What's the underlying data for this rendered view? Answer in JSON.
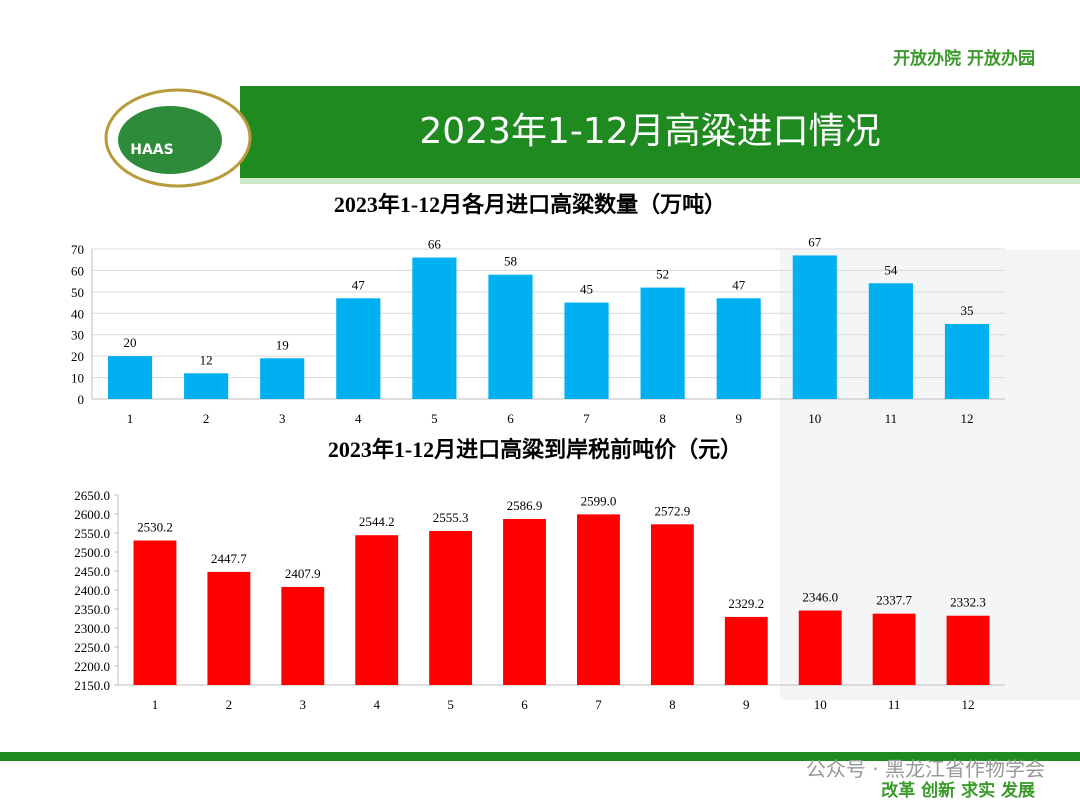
{
  "header": {
    "slogan": "开放办院 开放办园",
    "title": "2023年1-12月高粱进口情况",
    "logo": "HAAS"
  },
  "footer": {
    "motto": "改革 创新 求实 发展",
    "watermark": "公众号 · 黑龙江省作物学会"
  },
  "chart_data": [
    {
      "type": "bar",
      "title": "2023年1-12月各月进口高粱数量（万吨）",
      "categories": [
        "1",
        "2",
        "3",
        "4",
        "5",
        "6",
        "7",
        "8",
        "9",
        "10",
        "11",
        "12"
      ],
      "values": [
        20,
        12,
        19,
        47,
        66,
        58,
        45,
        52,
        47,
        67,
        54,
        35
      ],
      "color": "#00b0f0",
      "ylim": [
        0,
        70
      ],
      "yticks": [
        0,
        10,
        20,
        30,
        40,
        50,
        60,
        70
      ],
      "grid": true
    },
    {
      "type": "bar",
      "title": "2023年1-12月进口高粱到岸税前吨价（元）",
      "categories": [
        "1",
        "2",
        "3",
        "4",
        "5",
        "6",
        "7",
        "8",
        "9",
        "10",
        "11",
        "12"
      ],
      "values": [
        2530.2,
        2447.7,
        2407.9,
        2544.2,
        2555.3,
        2586.9,
        2599,
        2572.9,
        2329.2,
        2346,
        2337.7,
        2332.3
      ],
      "value_labels": [
        "2530.2",
        "2447.7",
        "2407.9",
        "2544.2",
        "2555.3",
        "2586.9",
        "2599.0",
        "2572.9",
        "2329.2",
        "2346.0",
        "2337.7",
        "2332.3"
      ],
      "color": "#ff0000",
      "ylim": [
        2150,
        2650
      ],
      "yticks": [
        {
          "value": 2150,
          "label": "2150.0"
        },
        {
          "value": 2200,
          "label": "2200.0"
        },
        {
          "value": 2250,
          "label": "2250.0"
        },
        {
          "value": 2300,
          "label": "2300.0"
        },
        {
          "value": 2350,
          "label": "2350.0"
        },
        {
          "value": 2400,
          "label": "2400.0"
        },
        {
          "value": 2450,
          "label": "2450.0"
        },
        {
          "value": 2500,
          "label": "2500.0"
        },
        {
          "value": 2550,
          "label": "2550.0"
        },
        {
          "value": 2600,
          "label": "2600.0"
        },
        {
          "value": 2650,
          "label": "2650.0"
        }
      ],
      "grid": false
    }
  ]
}
